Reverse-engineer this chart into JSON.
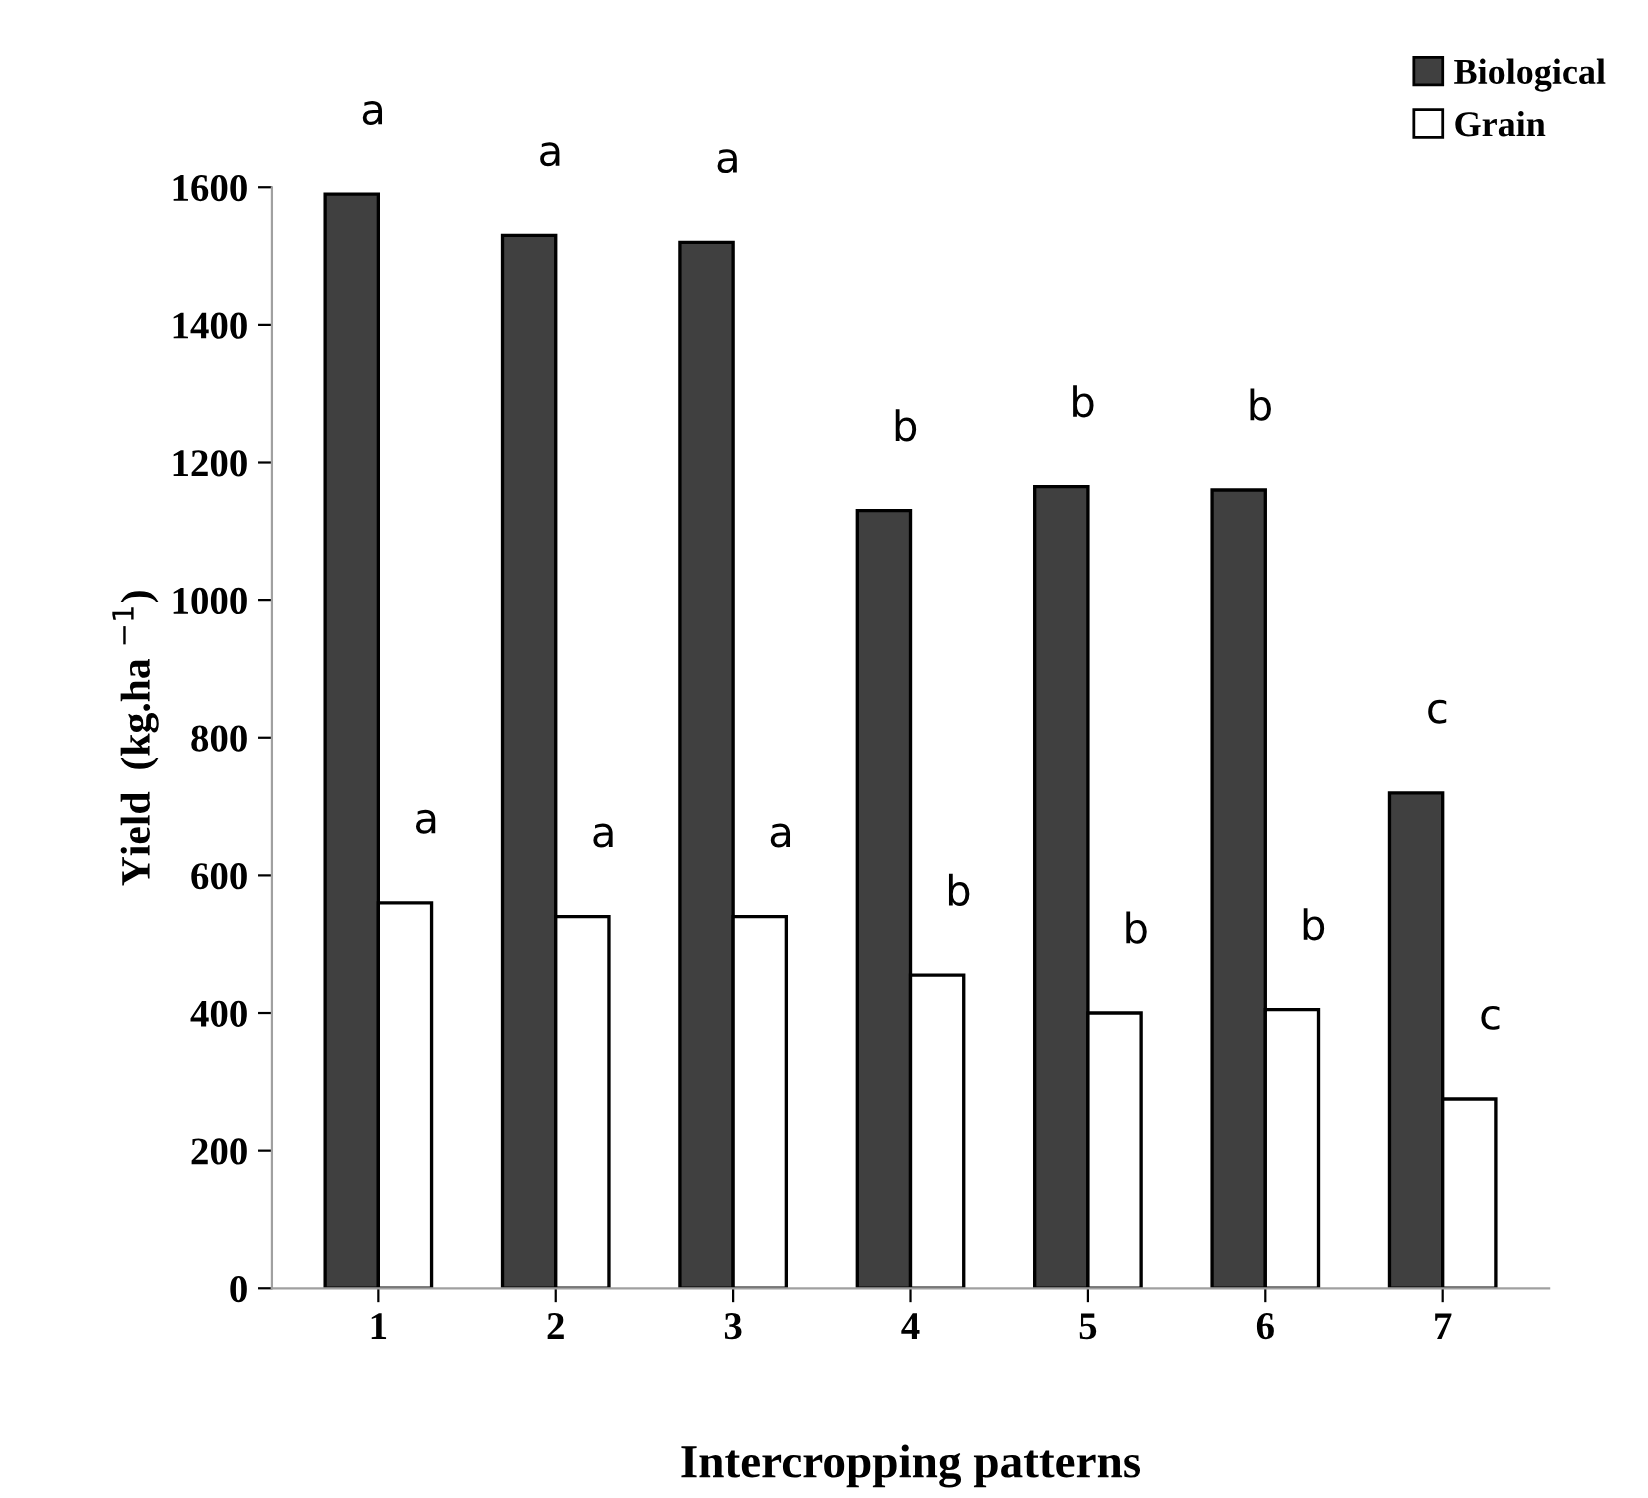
{
  "chart_data": {
    "type": "bar",
    "xlabel": "Intercropping patterns",
    "ylabel": "Yield  (kg.ha $^{−1}$)",
    "categories": [
      "1",
      "2",
      "3",
      "4",
      "5",
      "6",
      "7"
    ],
    "series": [
      {
        "name": "Biological",
        "color": "#404040",
        "values": [
          1590,
          1530,
          1520,
          1130,
          1165,
          1160,
          720
        ]
      },
      {
        "name": "Grain",
        "color": "#ffffff",
        "values": [
          560,
          540,
          540,
          455,
          400,
          405,
          275
        ]
      }
    ],
    "ylim": [
      0,
      1600
    ],
    "yticks": [
      0,
      200,
      400,
      600,
      800,
      1000,
      1200,
      1400,
      1600
    ],
    "grid": false,
    "legend": "top right",
    "annotations": [
      {
        "text": "a",
        "x": "1",
        "y": 1590
      },
      {
        "text": "a",
        "x": "2",
        "y": 1530
      },
      {
        "text": "a",
        "x": "3",
        "y": 1520
      },
      {
        "text": "b",
        "x": "4",
        "y": 1130
      },
      {
        "text": "b",
        "x": "5",
        "y": 1165
      },
      {
        "text": "b",
        "x": "6",
        "y": 1160
      },
      {
        "text": "c",
        "x": "7",
        "y": 720
      },
      {
        "text": "a",
        "x": "1",
        "y": 560
      },
      {
        "text": "a",
        "x": "2",
        "y": 540
      },
      {
        "text": "a",
        "x": "3",
        "y": 540
      },
      {
        "text": "b",
        "x": "4",
        "y": 455
      },
      {
        "text": "b",
        "x": "5",
        "y": 400
      },
      {
        "text": "b",
        "x": "6",
        "y": 405
      },
      {
        "text": "c",
        "x": "7",
        "y": 275
      }
    ]
  }
}
